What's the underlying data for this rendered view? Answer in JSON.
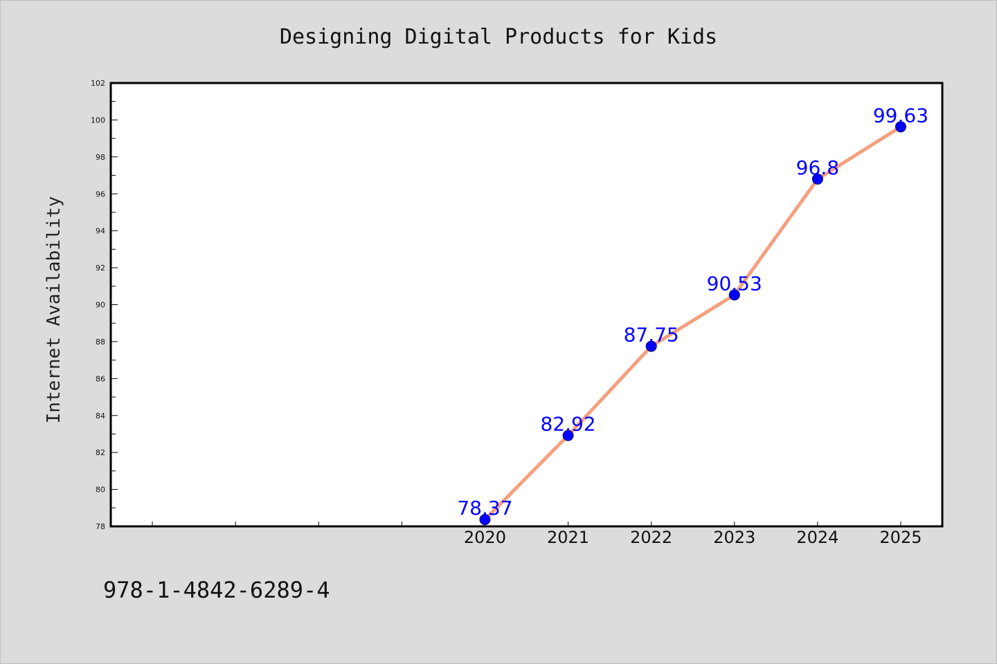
{
  "chart_data": {
    "type": "line",
    "title": "Designing Digital Products for Kids",
    "xlabel": "",
    "ylabel": "Internet Availability",
    "categories": [
      "2020",
      "2021",
      "2022",
      "2023",
      "2024",
      "2025"
    ],
    "series": [
      {
        "values": [
          78.37,
          82.92,
          87.75,
          90.53,
          96.8,
          99.63
        ]
      }
    ],
    "data_labels": [
      "78.37",
      "82.92",
      "87.75",
      "90.53",
      "96.8",
      "99.63"
    ],
    "ylim": [
      78,
      102
    ],
    "yticks": [
      "78",
      "80",
      "82",
      "84",
      "86",
      "88",
      "90",
      "92",
      "94",
      "96",
      "98",
      "100",
      "102"
    ],
    "xlim": [
      2015.5,
      2025.5
    ],
    "grid": false,
    "line_color": "#f4a07e",
    "marker_color": "#0000ff",
    "label_color": "#0000ff"
  },
  "footer": {
    "isbn": "978-1-4842-6289-4"
  }
}
